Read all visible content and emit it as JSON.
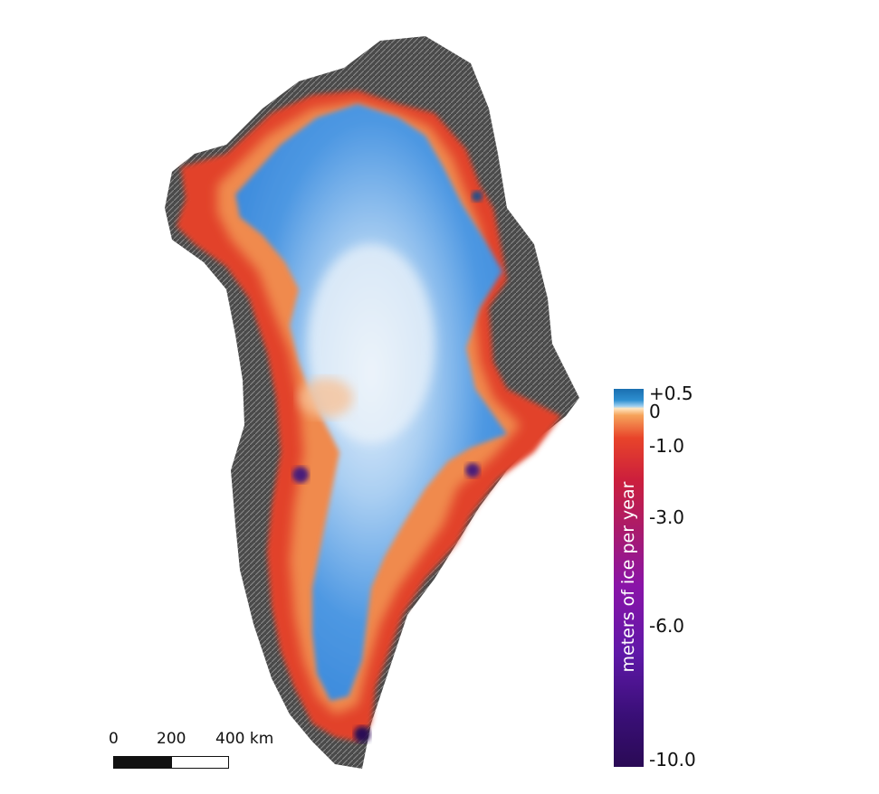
{
  "map": {
    "region": "Greenland",
    "colors": {
      "positive": "#1a6fb0",
      "zero": "#ffe6c0",
      "minus_one": "#e8442a",
      "minus_three": "#a81a6e",
      "minus_six": "#6a18b0",
      "minus_ten": "#2a0a55",
      "interior_blue": "#3d8fe0",
      "terrain": "#555555"
    }
  },
  "legend": {
    "title": "meters of ice per year",
    "ticks": [
      {
        "label": "+0.5",
        "value": 0.5
      },
      {
        "label": "0",
        "value": 0
      },
      {
        "label": "-1.0",
        "value": -1.0
      },
      {
        "label": "-3.0",
        "value": -3.0
      },
      {
        "label": "-6.0",
        "value": -6.0
      },
      {
        "label": "-10.0",
        "value": -10.0
      }
    ]
  },
  "scale_bar": {
    "labels": [
      "0",
      "200",
      "400 km"
    ]
  }
}
